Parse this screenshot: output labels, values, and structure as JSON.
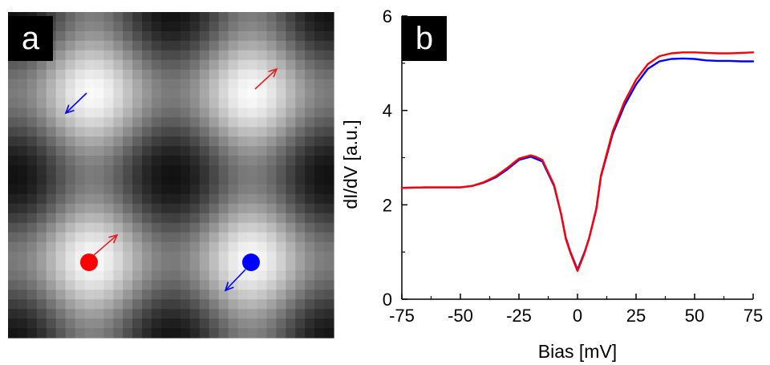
{
  "panel_a": {
    "label": "a",
    "image": "STM topograph, grayscale, 2x2 bright lattice maxima",
    "grid_cells": 34,
    "markers": [
      {
        "name": "red-dot",
        "color": "#ff0000"
      },
      {
        "name": "blue-dot",
        "color": "#0000ff"
      }
    ],
    "arrows": [
      {
        "name": "arrow-top-left",
        "color": "#0000ff",
        "direction": "down-left"
      },
      {
        "name": "arrow-top-right",
        "color": "#e02020",
        "direction": "up-right"
      },
      {
        "name": "arrow-bottom-left",
        "color": "#e02020",
        "direction": "up-right"
      },
      {
        "name": "arrow-bottom-right",
        "color": "#0000ff",
        "direction": "down-left"
      }
    ]
  },
  "panel_b": {
    "label": "b"
  },
  "chart_data": {
    "type": "line",
    "title": "",
    "xlabel": "Bias [mV]",
    "ylabel": "dI/dV [a.u.]",
    "xlim": [
      -75,
      75
    ],
    "ylim": [
      0,
      6
    ],
    "xticks": [
      -75,
      -50,
      -25,
      0,
      25,
      50,
      75
    ],
    "yticks": [
      0,
      2,
      4,
      6
    ],
    "grid": false,
    "legend": "none",
    "series": [
      {
        "color": "#0000ff",
        "x": [
          -75,
          -65,
          -55,
          -50,
          -45,
          -40,
          -35,
          -30,
          -25,
          -20,
          -18,
          -15,
          -10,
          -7,
          -5,
          -3,
          -1,
          0,
          1,
          3,
          5,
          8,
          10,
          15,
          20,
          25,
          30,
          35,
          40,
          45,
          50,
          55,
          60,
          65,
          70,
          75
        ],
        "y": [
          2.36,
          2.37,
          2.37,
          2.37,
          2.4,
          2.47,
          2.58,
          2.75,
          2.95,
          3.02,
          2.98,
          2.92,
          2.4,
          1.8,
          1.3,
          1.0,
          0.75,
          0.62,
          0.75,
          1.0,
          1.3,
          1.9,
          2.6,
          3.5,
          4.1,
          4.55,
          4.88,
          5.04,
          5.09,
          5.1,
          5.09,
          5.06,
          5.05,
          5.05,
          5.04,
          5.04
        ]
      },
      {
        "color": "#ff0000",
        "x": [
          -75,
          -65,
          -55,
          -50,
          -45,
          -40,
          -35,
          -30,
          -25,
          -20,
          -18,
          -15,
          -10,
          -7,
          -5,
          -3,
          -1,
          0,
          1,
          3,
          5,
          8,
          10,
          15,
          20,
          25,
          30,
          35,
          40,
          45,
          50,
          55,
          60,
          65,
          70,
          75
        ],
        "y": [
          2.36,
          2.37,
          2.37,
          2.37,
          2.4,
          2.48,
          2.6,
          2.78,
          2.98,
          3.05,
          3.02,
          2.95,
          2.42,
          1.8,
          1.28,
          0.98,
          0.72,
          0.6,
          0.72,
          0.98,
          1.3,
          1.92,
          2.62,
          3.55,
          4.18,
          4.65,
          4.98,
          5.15,
          5.21,
          5.23,
          5.23,
          5.22,
          5.21,
          5.21,
          5.22,
          5.23
        ]
      }
    ]
  }
}
